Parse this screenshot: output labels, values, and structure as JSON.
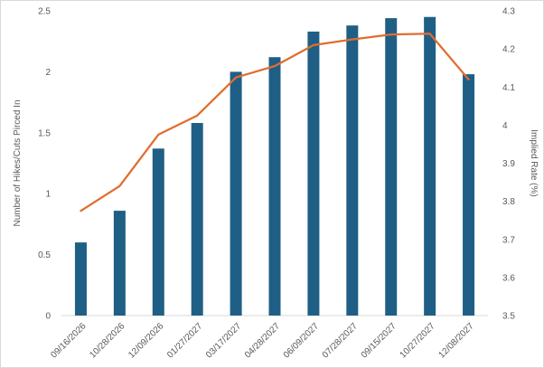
{
  "chart_data": {
    "type": "bar",
    "categories": [
      "09/16/2026",
      "10/28/2026",
      "12/09/2026",
      "01/27/2027",
      "03/17/2027",
      "04/28/2027",
      "06/09/2027",
      "07/28/2027",
      "09/15/2027",
      "10/27/2027",
      "12/08/2027"
    ],
    "series": [
      {
        "type": "bar",
        "axis": "left",
        "color": "#1f5f86",
        "values": [
          0.6,
          0.86,
          1.37,
          1.58,
          2.0,
          2.12,
          2.33,
          2.38,
          2.44,
          2.45,
          1.98
        ]
      },
      {
        "type": "line",
        "axis": "right",
        "color": "#e06d2f",
        "values": [
          3.775,
          3.84,
          3.975,
          4.025,
          4.125,
          4.155,
          4.21,
          4.225,
          4.238,
          4.24,
          4.12
        ]
      }
    ],
    "ylabel": "Number of Hikes/Cuts Pirced In",
    "y2label": "Implied Rate (%)",
    "ylim": [
      0,
      2.5
    ],
    "y2lim": [
      3.5,
      4.3
    ],
    "yticks": [
      "0",
      "0.5",
      "1",
      "1.5",
      "2",
      "2.5"
    ],
    "y2ticks": [
      "3.5",
      "3.6",
      "3.7",
      "3.8",
      "3.9",
      "4",
      "4.1",
      "4.2",
      "4.3"
    ],
    "grid": false,
    "legend": "none"
  }
}
